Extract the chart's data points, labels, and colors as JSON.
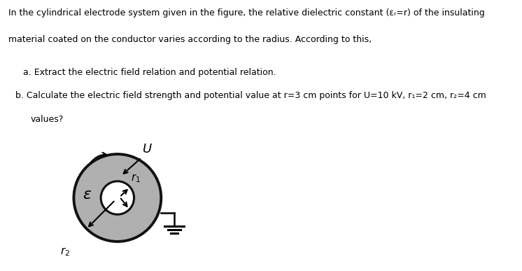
{
  "bg_color": "#ffffff",
  "text_color": "#000000",
  "gray_color": "#b0b0b0",
  "edge_color": "#111111",
  "white_color": "#ffffff",
  "fig_width": 7.46,
  "fig_height": 3.87,
  "dpi": 100,
  "outer_r": 1.0,
  "inner_r": 0.38,
  "label_epsilon": "ε",
  "label_U": "U",
  "label_r1": "r",
  "label_r2": "r",
  "text_line1": "In the cylindrical electrode system given in the figure, the relative dielectric constant (εᵣ=r) of the insulating",
  "text_line2": "material coated on the conductor varies according to the radius. According to this,",
  "text_line3": "   a. Extract the electric field relation and potential relation.",
  "text_line4": "   b. Calculate the electric field strength and potential value at r=3 cm points for U=10 kV, r₁=2 cm, r₂=4 cm",
  "text_line5": "      values?"
}
